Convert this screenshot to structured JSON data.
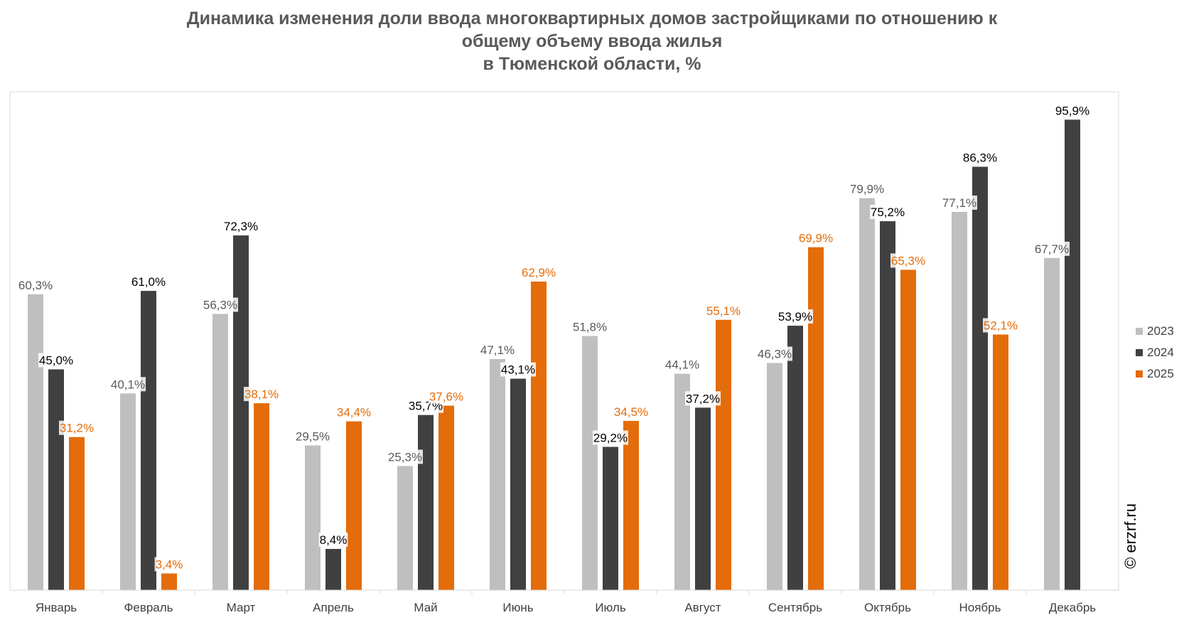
{
  "chart_data": {
    "type": "bar",
    "title_lines": [
      "Динамика изменения доли ввода многоквартирных домов застройщиками по отношению к",
      "общему объему ввода жилья",
      "в Тюменской области, %"
    ],
    "categories": [
      "Январь",
      "Февраль",
      "Март",
      "Апрель",
      "Май",
      "Июнь",
      "Июль",
      "Август",
      "Сентябрь",
      "Октябрь",
      "Ноябрь",
      "Декабрь"
    ],
    "series": [
      {
        "name": "2023",
        "color": "#bfbfbf",
        "label_color": "#595959",
        "values": [
          60.3,
          40.1,
          56.3,
          29.5,
          25.3,
          47.1,
          51.8,
          44.1,
          46.3,
          79.9,
          77.1,
          67.7
        ],
        "labels": [
          "60,3%",
          "40,1%",
          "56,3%",
          "29,5%",
          "25,3%",
          "47,1%",
          "51,8%",
          "44,1%",
          "46,3%",
          "79,9%",
          "77,1%",
          "67,7%"
        ]
      },
      {
        "name": "2024",
        "color": "#404040",
        "label_color": "#000000",
        "values": [
          45.0,
          61.0,
          72.3,
          8.4,
          35.7,
          43.1,
          29.2,
          37.2,
          53.9,
          75.2,
          86.3,
          95.9
        ],
        "labels": [
          "45,0%",
          "61,0%",
          "72,3%",
          "8,4%",
          "35,7%",
          "43,1%",
          "29,2%",
          "37,2%",
          "53,9%",
          "75,2%",
          "86,3%",
          "95,9%"
        ]
      },
      {
        "name": "2025",
        "color": "#e46c0a",
        "label_color": "#e46c0a",
        "values": [
          31.2,
          3.4,
          38.1,
          34.4,
          37.6,
          62.9,
          34.5,
          55.1,
          69.9,
          65.3,
          52.1,
          null
        ],
        "labels": [
          "31,2%",
          "3,4%",
          "38,1%",
          "34,4%",
          "37,6%",
          "62,9%",
          "34,5%",
          "55,1%",
          "69,9%",
          "65,3%",
          "52,1%",
          ""
        ]
      }
    ],
    "ylim": [
      0,
      100
    ],
    "grid": false,
    "legend_position": "right"
  },
  "watermark": "© erzrf.ru"
}
